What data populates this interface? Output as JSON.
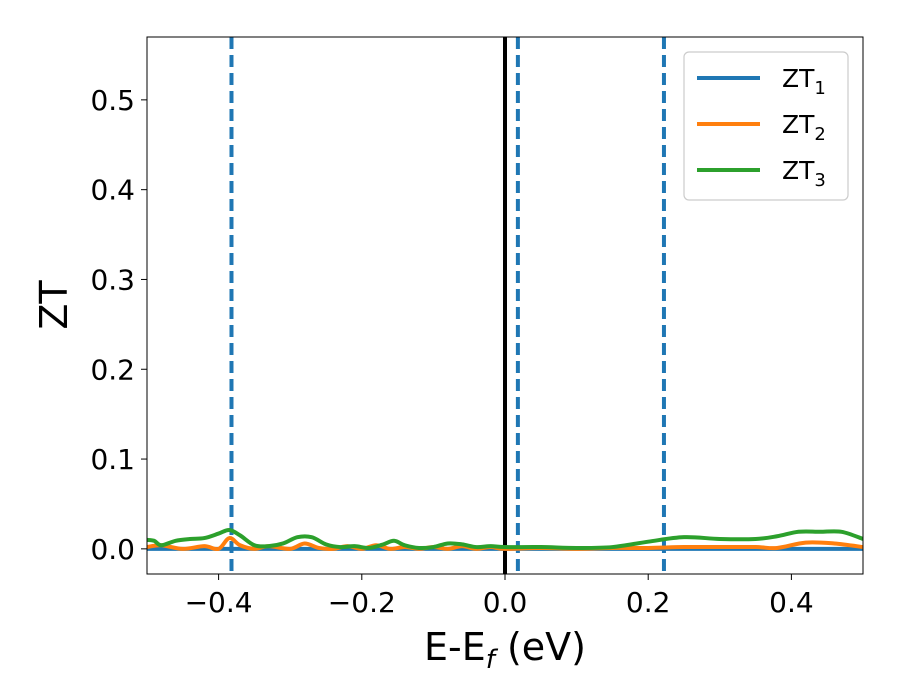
{
  "chart_data": {
    "type": "line",
    "xlabel": "E-E",
    "xlabel_sub": "f",
    "xlabel_unit": " (eV)",
    "ylabel": "ZT",
    "xlim": [
      -0.5,
      0.5
    ],
    "ylim": [
      -0.028,
      0.57
    ],
    "x_ticks": [
      -0.4,
      -0.2,
      0.0,
      0.2,
      0.4
    ],
    "x_tick_labels": [
      "−0.4",
      "−0.2",
      "0.0",
      "0.2",
      "0.4"
    ],
    "y_ticks": [
      0.0,
      0.1,
      0.2,
      0.3,
      0.4,
      0.5
    ],
    "y_tick_labels": [
      "0.0",
      "0.1",
      "0.2",
      "0.3",
      "0.4",
      "0.5"
    ],
    "grid": false,
    "legend_position": "top-right",
    "fermi_line": {
      "x": 0.0,
      "color": "#000000",
      "style": "solid"
    },
    "marker_lines": [
      {
        "x": -0.382,
        "color": "#1f77b4",
        "style": "dashed"
      },
      {
        "x": 0.018,
        "color": "#1f77b4",
        "style": "dashed"
      },
      {
        "x": 0.222,
        "color": "#1f77b4",
        "style": "dashed"
      }
    ],
    "series": [
      {
        "name": "ZT",
        "name_sub": "1",
        "color": "#1f77b4",
        "x": [
          -0.5,
          -0.4,
          -0.3,
          -0.2,
          -0.1,
          0.0,
          0.1,
          0.2,
          0.3,
          0.4,
          0.5
        ],
        "y": [
          0.0,
          0.0,
          0.0,
          0.0,
          0.0,
          0.0,
          0.0,
          0.0,
          0.0,
          0.0,
          0.0
        ]
      },
      {
        "name": "ZT",
        "name_sub": "2",
        "color": "#ff7f0e",
        "x": [
          -0.5,
          -0.48,
          -0.45,
          -0.42,
          -0.4,
          -0.385,
          -0.37,
          -0.35,
          -0.33,
          -0.3,
          -0.28,
          -0.26,
          -0.24,
          -0.22,
          -0.2,
          -0.18,
          -0.16,
          -0.14,
          -0.12,
          -0.1,
          -0.08,
          -0.06,
          -0.04,
          -0.02,
          0.0,
          0.05,
          0.1,
          0.15,
          0.2,
          0.25,
          0.3,
          0.35,
          0.38,
          0.42,
          0.46,
          0.5
        ],
        "y": [
          0.002,
          0.004,
          0.0,
          0.003,
          0.0,
          0.012,
          0.004,
          0.0,
          0.003,
          0.0,
          0.006,
          0.001,
          0.0,
          0.003,
          0.0,
          0.004,
          0.0,
          0.002,
          0.0,
          0.002,
          0.0,
          0.003,
          0.0,
          0.002,
          0.0,
          0.001,
          0.0,
          0.001,
          0.001,
          0.002,
          0.002,
          0.002,
          0.001,
          0.007,
          0.006,
          0.002
        ]
      },
      {
        "name": "ZT",
        "name_sub": "3",
        "color": "#2ca02c",
        "x": [
          -0.5,
          -0.49,
          -0.48,
          -0.46,
          -0.44,
          -0.42,
          -0.4,
          -0.385,
          -0.37,
          -0.35,
          -0.33,
          -0.31,
          -0.29,
          -0.27,
          -0.25,
          -0.23,
          -0.21,
          -0.19,
          -0.17,
          -0.155,
          -0.14,
          -0.12,
          -0.1,
          -0.08,
          -0.06,
          -0.04,
          -0.02,
          0.0,
          0.05,
          0.1,
          0.15,
          0.2,
          0.25,
          0.3,
          0.35,
          0.38,
          0.41,
          0.44,
          0.47,
          0.5
        ],
        "y": [
          0.01,
          0.009,
          0.004,
          0.009,
          0.011,
          0.012,
          0.017,
          0.021,
          0.015,
          0.004,
          0.003,
          0.006,
          0.013,
          0.013,
          0.005,
          0.002,
          0.003,
          0.001,
          0.005,
          0.009,
          0.004,
          0.001,
          0.002,
          0.006,
          0.005,
          0.002,
          0.003,
          0.002,
          0.002,
          0.001,
          0.002,
          0.008,
          0.013,
          0.011,
          0.011,
          0.014,
          0.019,
          0.019,
          0.019,
          0.011
        ]
      }
    ]
  }
}
